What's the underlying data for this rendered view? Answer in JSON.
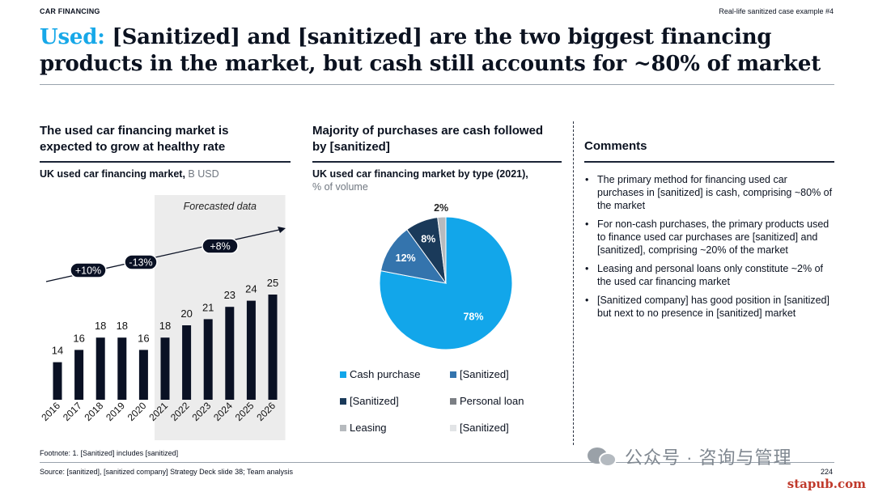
{
  "header": {
    "section_label": "CAR FINANCING",
    "case_label": "Real-life sanitized case example #4",
    "title_accent": "Used:",
    "title_rest": " [Sanitized] and [sanitized] are the two biggest financing products in the market, but cash still accounts for ~80% of market"
  },
  "left": {
    "heading": "The used car financing market is expected to grow at healthy rate",
    "subtitle_bold": "UK used car financing market,",
    "subtitle_unit": " B USD",
    "forecast_label": "Forecasted data"
  },
  "middle": {
    "heading": "Majority of purchases are cash followed by [sanitized]",
    "subtitle_bold": "UK used car financing market by type (2021),",
    "subtitle_unit": "% of volume"
  },
  "chart_data": [
    {
      "type": "bar",
      "title": "UK used car financing market, B USD",
      "ylabel": "B USD",
      "categories": [
        "2016",
        "2017",
        "2018",
        "2019",
        "2020",
        "2021",
        "2022",
        "2023",
        "2024",
        "2025",
        "2026"
      ],
      "values": [
        14,
        16,
        18,
        18,
        16,
        18,
        20,
        21,
        23,
        24,
        25
      ],
      "ylim": [
        0,
        25
      ],
      "forecast_from": "2021",
      "annotations": [
        "+10%",
        "-13%",
        "+8%"
      ],
      "colors": {
        "bar": "#0a1124",
        "forecast_bg": "#ececec",
        "badge": "#0a1124"
      }
    },
    {
      "type": "pie",
      "title": "UK used car financing market by type (2021), % of volume",
      "slices": [
        {
          "label": "Cash purchase",
          "value": 78,
          "display": "78%",
          "color": "#12a6ea"
        },
        {
          "label": "[Sanitized]",
          "value": 12,
          "display": "12%",
          "color": "#3474ad"
        },
        {
          "label": "[Sanitized]",
          "value": 8,
          "display": "8%",
          "color": "#1a3a5a"
        },
        {
          "label": "Personal loan",
          "value": 0,
          "display": "",
          "color": "#7b7f84"
        },
        {
          "label": "Leasing",
          "value": 2,
          "display": "2%",
          "color": "#b6babe"
        },
        {
          "label": "[Sanitized]",
          "value": 0,
          "display": "",
          "color": "#e2e4e6"
        }
      ]
    }
  ],
  "comments": {
    "heading": "Comments",
    "items": [
      "The primary method for financing used car purchases in [sanitized] is cash, comprising ~80% of the market",
      "For non-cash purchases, the primary products used to finance used car purchases are [sanitized] and [sanitized], comprising ~20% of the market",
      "Leasing and personal loans only constitute ~2% of the used car financing market",
      "[Sanitized company] has good position in [sanitized] but next to no presence in [sanitized] market"
    ]
  },
  "footer": {
    "footnote": "Footnote: 1. [Sanitized] includes [sanitized]",
    "source": "Source: [sanitized], [sanitized company] Strategy Deck slide 38; Team analysis",
    "page_number": "224"
  },
  "watermark": {
    "text": "公众号 · 咨询与管理",
    "site": "stapub.com"
  }
}
